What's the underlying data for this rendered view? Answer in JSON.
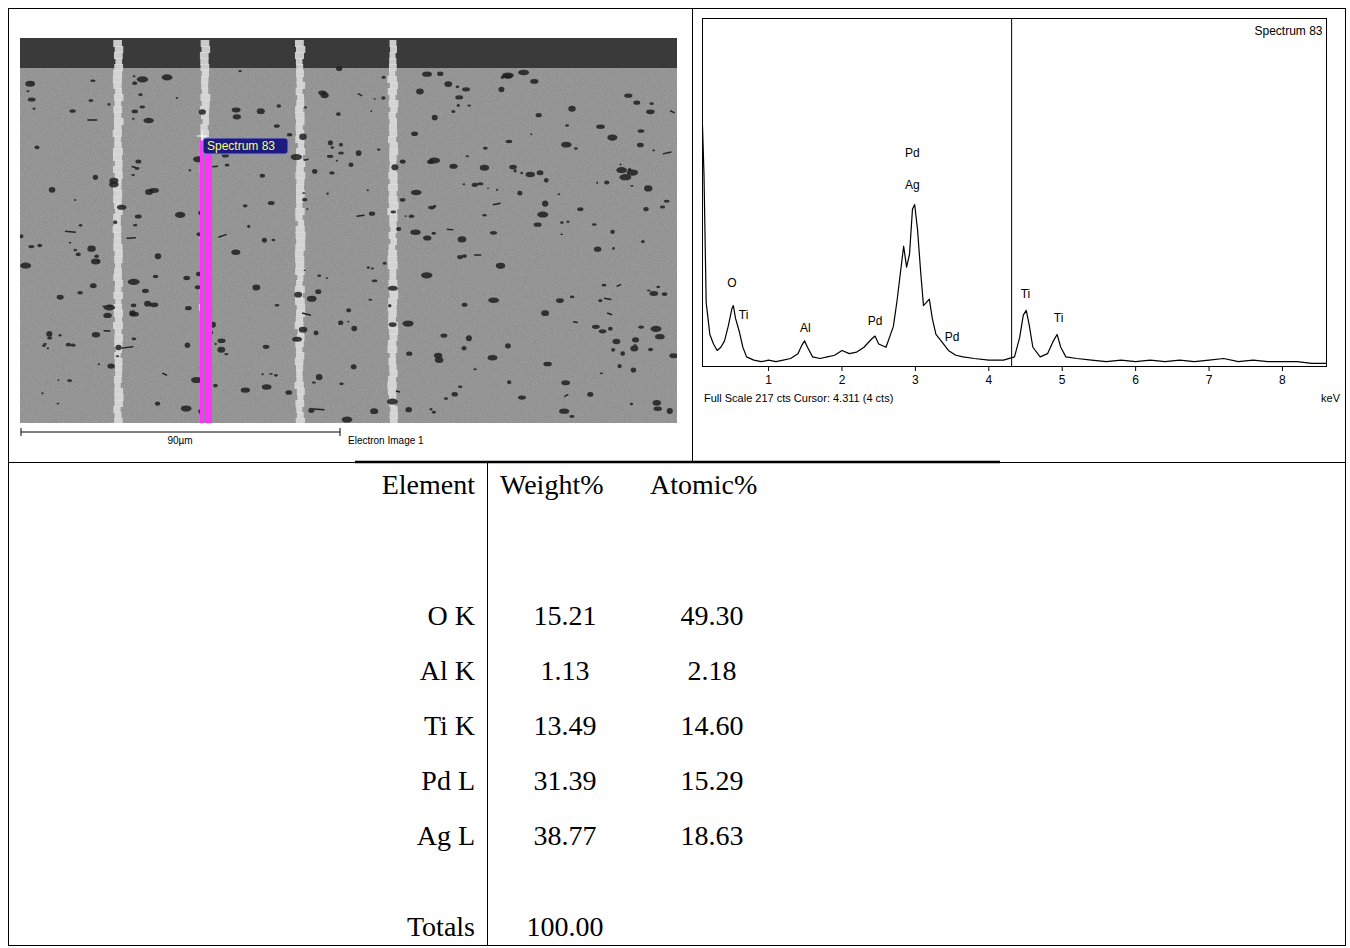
{
  "electron_image": {
    "spectrum_label": "Spectrum 83",
    "scale_bar": "90µm",
    "caption": "Electron Image 1"
  },
  "chart_data": {
    "type": "line",
    "title": "Spectrum 83",
    "x_label": "keV",
    "caption": "Full Scale 217 cts Cursor: 4.311 (4 cts)",
    "color": "#000000",
    "cursor": 4.311,
    "xlim": [
      0.1,
      8.6
    ],
    "xticks": [
      1,
      2,
      3,
      4,
      5,
      6,
      7,
      8
    ],
    "ylim": [
      0,
      217
    ],
    "tick_labels": "x",
    "x": [
      0.1,
      0.12,
      0.15,
      0.2,
      0.25,
      0.3,
      0.35,
      0.4,
      0.45,
      0.5,
      0.52,
      0.55,
      0.6,
      0.65,
      0.7,
      0.8,
      0.9,
      1.0,
      1.1,
      1.2,
      1.3,
      1.4,
      1.45,
      1.49,
      1.53,
      1.6,
      1.7,
      1.8,
      1.9,
      2.0,
      2.1,
      2.2,
      2.3,
      2.4,
      2.45,
      2.5,
      2.6,
      2.7,
      2.75,
      2.8,
      2.84,
      2.88,
      2.92,
      2.96,
      2.99,
      3.03,
      3.07,
      3.11,
      3.15,
      3.19,
      3.23,
      3.28,
      3.35,
      3.45,
      3.55,
      3.65,
      3.8,
      4.0,
      4.2,
      4.35,
      4.42,
      4.47,
      4.51,
      4.55,
      4.6,
      4.7,
      4.8,
      4.88,
      4.93,
      4.98,
      5.05,
      5.2,
      5.4,
      5.6,
      5.8,
      6.0,
      6.2,
      6.4,
      6.6,
      6.8,
      7.0,
      7.2,
      7.4,
      7.6,
      7.8,
      8.0,
      8.2,
      8.4,
      8.6
    ],
    "values": [
      150,
      120,
      40,
      20,
      14,
      10,
      12,
      16,
      25,
      36,
      38,
      30,
      22,
      12,
      6,
      4,
      3,
      4,
      3,
      4,
      5,
      8,
      13,
      16,
      12,
      6,
      5,
      6,
      7,
      10,
      8,
      9,
      12,
      17,
      19,
      14,
      12,
      25,
      41,
      60,
      75,
      62,
      70,
      98,
      101,
      85,
      60,
      38,
      40,
      42,
      30,
      20,
      16,
      10,
      7,
      6,
      5,
      4,
      4,
      6,
      18,
      32,
      35,
      26,
      12,
      6,
      8,
      16,
      20,
      12,
      6,
      5,
      4,
      3,
      4,
      3,
      4,
      3,
      4,
      3,
      4,
      5,
      3,
      4,
      3,
      3,
      3,
      2,
      2
    ],
    "annotations": [
      {
        "text": "O",
        "x": 0.5,
        "y": 52
      },
      {
        "text": "Ti",
        "x": 0.66,
        "y": 32
      },
      {
        "text": "Al",
        "x": 1.5,
        "y": 24
      },
      {
        "text": "Pd",
        "x": 2.45,
        "y": 28
      },
      {
        "text": "Pd",
        "x": 2.96,
        "y": 133
      },
      {
        "text": "Ag",
        "x": 2.96,
        "y": 113
      },
      {
        "text": "Pd",
        "x": 3.5,
        "y": 18
      },
      {
        "text": "Ti",
        "x": 4.5,
        "y": 45
      },
      {
        "text": "Ti",
        "x": 4.95,
        "y": 30
      }
    ]
  },
  "table": {
    "header": [
      "Element",
      "Weight%",
      "Atomic%"
    ],
    "rows": [
      [
        "O K",
        "15.21",
        "49.30"
      ],
      [
        "Al K",
        "1.13",
        "2.18"
      ],
      [
        "Ti K",
        "13.49",
        "14.60"
      ],
      [
        "Pd L",
        "31.39",
        "15.29"
      ],
      [
        "Ag L",
        "38.77",
        "18.63"
      ]
    ],
    "totals": [
      "Totals",
      "100.00"
    ]
  }
}
